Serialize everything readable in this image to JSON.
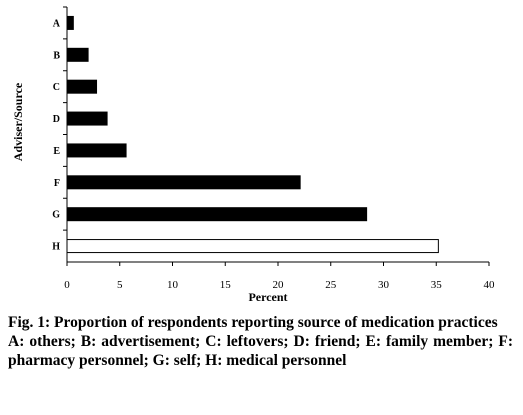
{
  "chart_data": {
    "type": "bar",
    "orientation": "horizontal",
    "categories": [
      "A",
      "B",
      "C",
      "D",
      "E",
      "F",
      "G",
      "H"
    ],
    "values": [
      0.6,
      2.0,
      2.8,
      3.8,
      5.6,
      22.1,
      28.4,
      35.2
    ],
    "bar_colors": [
      "#000000",
      "#000000",
      "#000000",
      "#000000",
      "#000000",
      "#000000",
      "#000000",
      "#ffffff"
    ],
    "xlabel": "Percent",
    "ylabel": "Adviser/Source",
    "xlim": [
      0,
      40
    ],
    "xticks": [
      "0",
      "5",
      "10",
      "15",
      "20",
      "25",
      "30",
      "35",
      "40"
    ],
    "grid": false,
    "legend": false
  },
  "caption": {
    "title": "Fig. 1: Proportion of respondents reporting source of medication practices",
    "legend": "A: others; B: advertisement; C: leftovers; D: friend; E: family member; F: pharmacy personnel; G: self; H: medical personnel"
  }
}
